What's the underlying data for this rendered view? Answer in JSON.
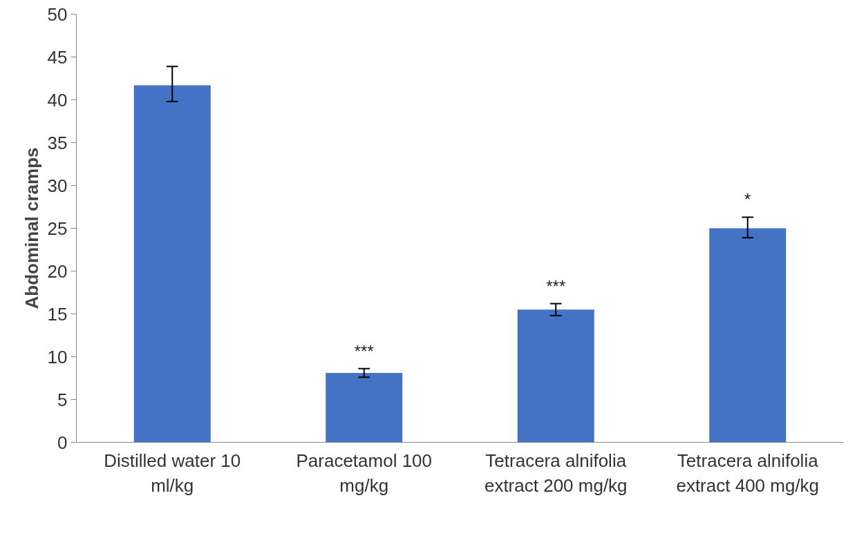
{
  "chart_data": {
    "type": "bar",
    "ylabel": "Abdominal cramps",
    "categories": [
      "Distilled water 10 ml/kg",
      "Paracetamol 100 mg/kg",
      "Tetracera alnifolia extract 200 mg/kg",
      "Tetracera alnifolia extract 400 mg/kg"
    ],
    "values": [
      41.7,
      8.1,
      15.5,
      25.0
    ],
    "color": "#4472c4",
    "errors": [
      [
        39.8,
        43.9
      ],
      [
        7.6,
        8.6
      ],
      [
        14.8,
        16.2
      ],
      [
        23.9,
        26.3
      ]
    ],
    "value_labels": [
      null,
      "***",
      "***",
      "*"
    ],
    "ylim": [
      0,
      50
    ],
    "yticks": [
      0,
      5,
      10,
      15,
      20,
      25,
      30,
      35,
      40,
      45,
      50
    ],
    "grid": false
  }
}
